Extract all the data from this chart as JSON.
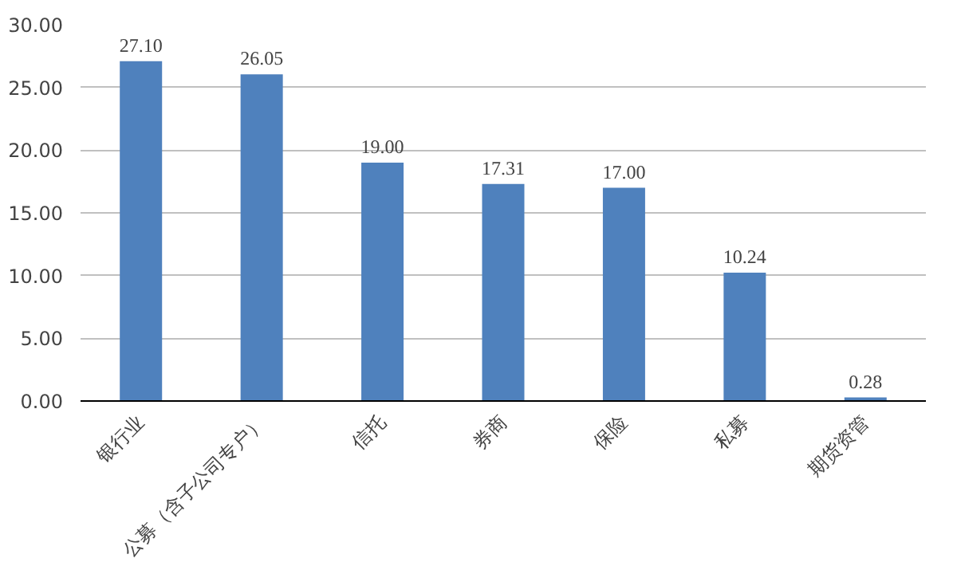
{
  "chart_data": {
    "type": "bar",
    "categories": [
      "银行业",
      "公募（含子公司专户）",
      "信托",
      "券商",
      "保险",
      "私募",
      "期货资管"
    ],
    "values": [
      27.1,
      26.05,
      19.0,
      17.31,
      17.0,
      10.24,
      0.28
    ],
    "value_labels": [
      "27.10",
      "26.05",
      "19.00",
      "17.31",
      "17.00",
      "10.24",
      "0.28"
    ],
    "color": "#4f81bd",
    "ylim": [
      0,
      30
    ],
    "yticks": [
      {
        "value": 0,
        "label": "0.00"
      },
      {
        "value": 5,
        "label": "5.00"
      },
      {
        "value": 10,
        "label": "10.00"
      },
      {
        "value": 15,
        "label": "15.00"
      },
      {
        "value": 20,
        "label": "20.00"
      },
      {
        "value": 25,
        "label": "25.00"
      },
      {
        "value": 30,
        "label": "30.00"
      }
    ],
    "grid": "y"
  }
}
